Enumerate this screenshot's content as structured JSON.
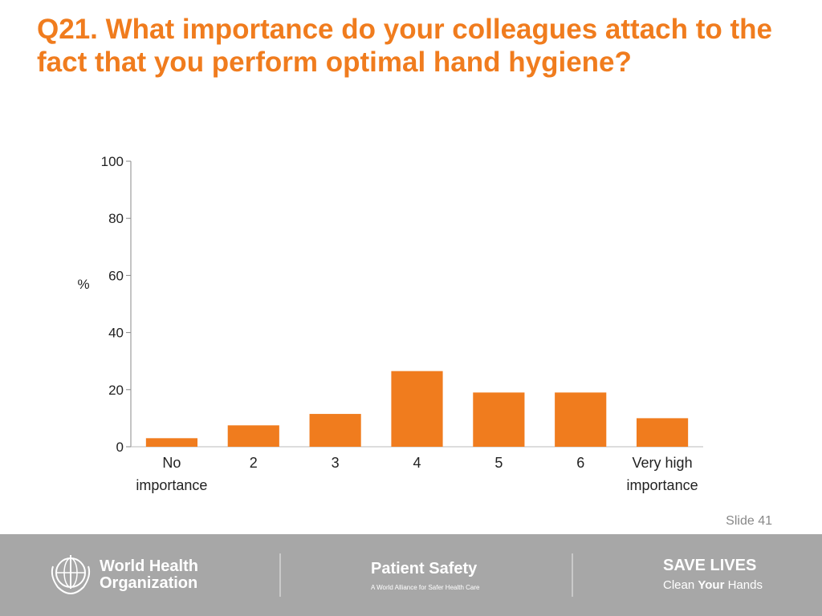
{
  "slide": {
    "title": "Q21. What importance do your colleagues attach to the fact that you perform optimal hand hygiene?",
    "slide_number": "Slide 41"
  },
  "chart_data": {
    "type": "bar",
    "categories": [
      "No importance",
      "2",
      "3",
      "4",
      "5",
      "6",
      "Very high importance"
    ],
    "category_lines": [
      [
        "No",
        "importance"
      ],
      [
        "2"
      ],
      [
        "3"
      ],
      [
        "4"
      ],
      [
        "5"
      ],
      [
        "6"
      ],
      [
        "Very high",
        "importance"
      ]
    ],
    "values": [
      3,
      7.5,
      11.5,
      26.5,
      19,
      19,
      10
    ],
    "title": "",
    "xlabel": "",
    "ylabel": "%",
    "ylim": [
      0,
      100
    ],
    "yticks": [
      0,
      20,
      40,
      60,
      80,
      100
    ],
    "grid": false,
    "bar_color": "#f07c1e"
  },
  "footer": {
    "who_line1": "World Health",
    "who_line2": "Organization",
    "ps_title": "Patient Safety",
    "ps_subtitle": "A World Alliance for Safer Health Care",
    "save_title": "SAVE LIVES",
    "save_sub_1": "Clean ",
    "save_sub_2": "Your",
    "save_sub_3": " Hands"
  },
  "colors": {
    "accent": "#f07c1e",
    "footer_bg": "#a7a7a7"
  }
}
